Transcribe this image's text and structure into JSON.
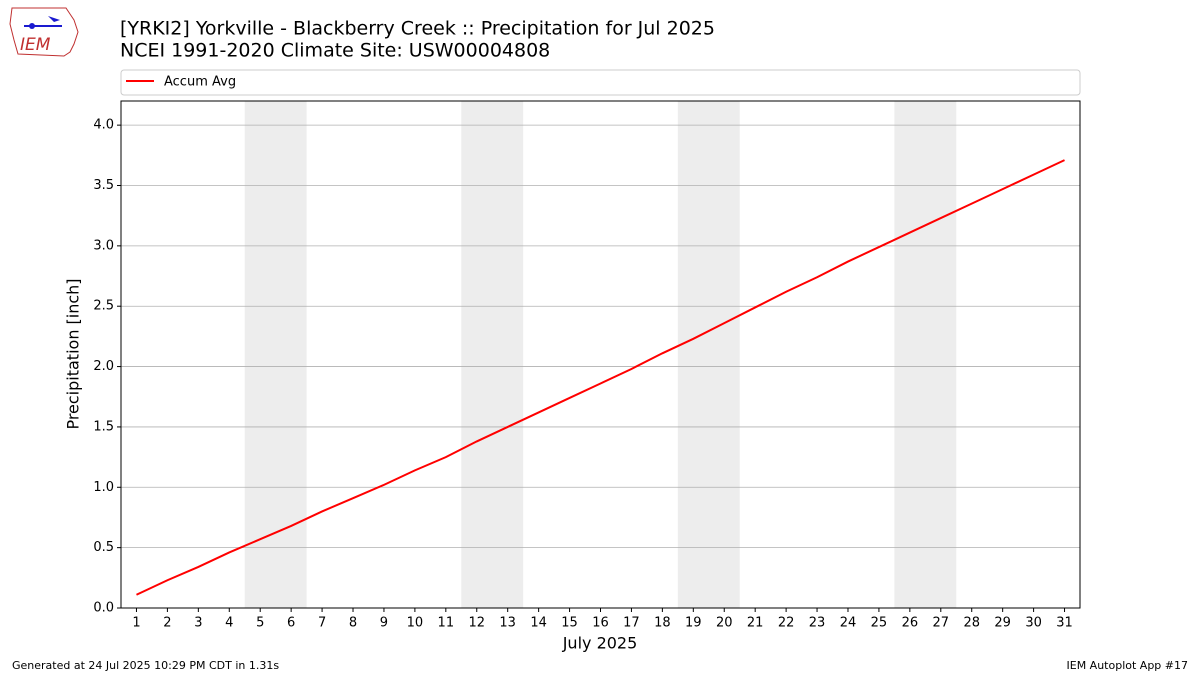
{
  "chart_data": {
    "type": "line",
    "title": "[YRKI2] Yorkville - Blackberry Creek :: Precipitation for Jul 2025",
    "subtitle": "NCEI 1991-2020 Climate Site: USW00004808",
    "x_label": "July 2025",
    "y_label": "Precipitation [inch]",
    "x": [
      1,
      2,
      3,
      4,
      5,
      6,
      7,
      8,
      9,
      10,
      11,
      12,
      13,
      14,
      15,
      16,
      17,
      18,
      19,
      20,
      21,
      22,
      23,
      24,
      25,
      26,
      27,
      28,
      29,
      30,
      31
    ],
    "series": [
      {
        "name": "Accum Avg",
        "color": "#ff0000",
        "values": [
          0.11,
          0.23,
          0.34,
          0.46,
          0.57,
          0.68,
          0.8,
          0.91,
          1.02,
          1.14,
          1.25,
          1.38,
          1.5,
          1.62,
          1.74,
          1.86,
          1.98,
          2.11,
          2.23,
          2.36,
          2.49,
          2.62,
          2.74,
          2.87,
          2.99,
          3.11,
          3.23,
          3.35,
          3.47,
          3.59,
          3.71
        ]
      }
    ],
    "shaded_spans": [
      [
        4.5,
        6.5
      ],
      [
        11.5,
        13.5
      ],
      [
        18.5,
        20.5
      ],
      [
        25.5,
        27.5
      ]
    ],
    "shade_color": "#ededed",
    "xlim": [
      0.5,
      31.5
    ],
    "ylim": [
      0,
      4.2
    ],
    "xticks": [
      1,
      2,
      3,
      4,
      5,
      6,
      7,
      8,
      9,
      10,
      11,
      12,
      13,
      14,
      15,
      16,
      17,
      18,
      19,
      20,
      21,
      22,
      23,
      24,
      25,
      26,
      27,
      28,
      29,
      30,
      31
    ],
    "yticks": [
      {
        "value": 0,
        "label": "0.0"
      },
      {
        "value": 0.5,
        "label": "0.5"
      },
      {
        "value": 1,
        "label": "1.0"
      },
      {
        "value": 1.5,
        "label": "1.5"
      },
      {
        "value": 2,
        "label": "2.0"
      },
      {
        "value": 2.5,
        "label": "2.5"
      },
      {
        "value": 3,
        "label": "3.0"
      },
      {
        "value": 3.5,
        "label": "3.5"
      },
      {
        "value": 4,
        "label": "4.0"
      }
    ],
    "grid": "y",
    "legend": "top"
  },
  "logo": "IEM",
  "footer_left": "Generated at 24 Jul 2025 10:29 PM CDT in 1.31s",
  "footer_right": "IEM Autoplot App #17"
}
